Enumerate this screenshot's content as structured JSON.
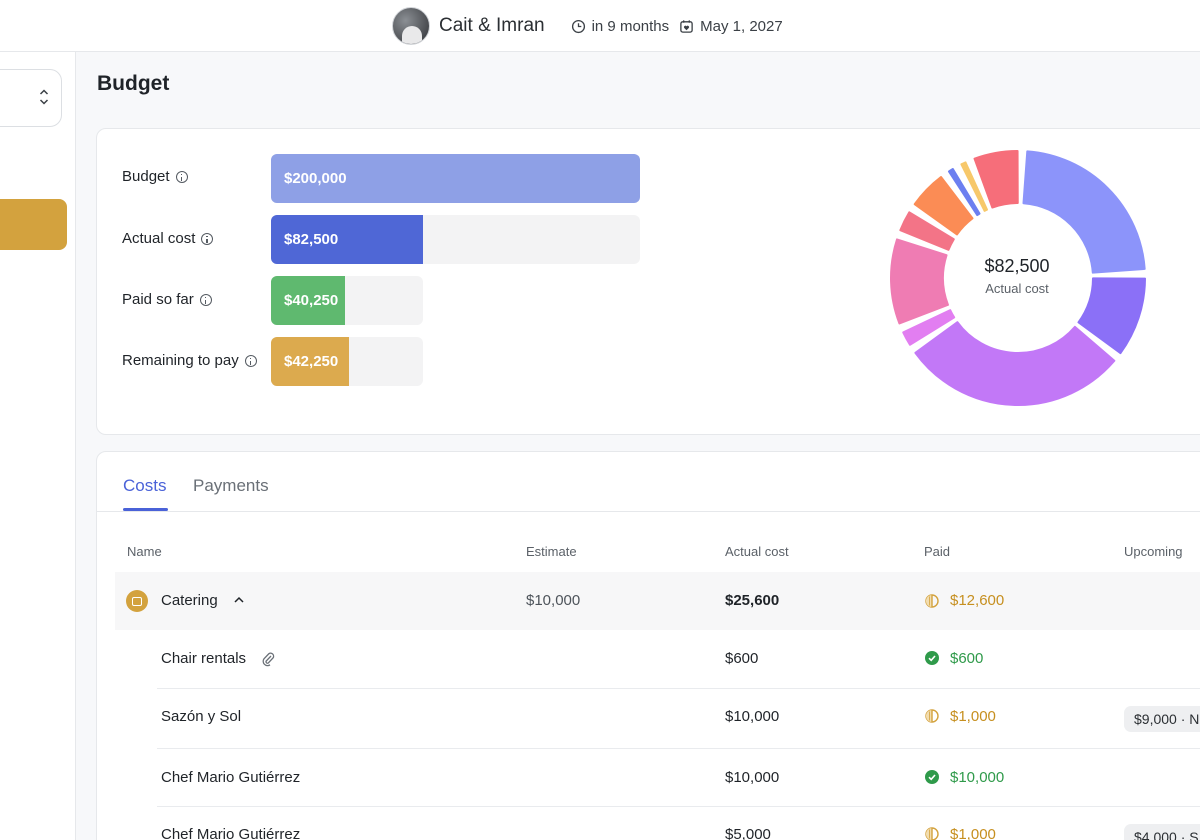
{
  "header": {
    "couple_name": "Cait & Imran",
    "countdown": "in 9 months",
    "date": "May 1, 2027"
  },
  "page": {
    "title": "Budget"
  },
  "summary": {
    "rows": [
      {
        "label": "Budget",
        "value": "$200,000",
        "fraction": 1.0,
        "color": "#8ea0e6"
      },
      {
        "label": "Actual cost",
        "value": "$82,500",
        "fraction": 0.4125,
        "color": "#4f67d6"
      },
      {
        "label": "Paid so far",
        "value": "$40,250",
        "fraction": 0.488,
        "color": "#5fb96f"
      },
      {
        "label": "Remaining to pay",
        "value": "$42,250",
        "fraction": 0.512,
        "color": "#dcaa4e"
      }
    ],
    "donut": {
      "value": "$82,500",
      "label": "Actual cost",
      "segments": [
        {
          "value": 16.0,
          "color": "#8c94fa"
        },
        {
          "value": 7.5,
          "color": "#8b70f7"
        },
        {
          "value": 20.0,
          "color": "#c278f7"
        },
        {
          "value": 2.0,
          "color": "#e27ef1"
        },
        {
          "value": 8.0,
          "color": "#ef7cb3"
        },
        {
          "value": 2.5,
          "color": "#f37487"
        },
        {
          "value": 4.0,
          "color": "#fb8c55"
        },
        {
          "value": 1.2,
          "color": "#6c7ff0"
        },
        {
          "value": 1.2,
          "color": "#f7c86a"
        },
        {
          "value": 4.5,
          "color": "#f66e7a"
        }
      ]
    }
  },
  "tabs": [
    {
      "label": "Costs",
      "active": true
    },
    {
      "label": "Payments",
      "active": false
    }
  ],
  "table": {
    "columns": [
      "Name",
      "Estimate",
      "Actual cost",
      "Paid",
      "Upcoming"
    ],
    "group": {
      "name": "Catering",
      "estimate": "$10,000",
      "actual": "$25,600",
      "paid": "$12,600",
      "paid_status": "partial"
    },
    "rows": [
      {
        "name": "Chair rentals",
        "actual": "$600",
        "paid": "$600",
        "paid_status": "full",
        "upcoming": "",
        "attachment": true
      },
      {
        "name": "Sazón y Sol",
        "actual": "$10,000",
        "paid": "$1,000",
        "paid_status": "partial",
        "upcoming": "$9,000 · N"
      },
      {
        "name": "Chef Mario Gutiérrez",
        "actual": "$10,000",
        "paid": "$10,000",
        "paid_status": "full",
        "upcoming": ""
      },
      {
        "name": "Chef Mario Gutiérrez",
        "actual": "$5,000",
        "paid": "$1,000",
        "paid_status": "partial",
        "upcoming": "$4,000 · S"
      }
    ]
  }
}
